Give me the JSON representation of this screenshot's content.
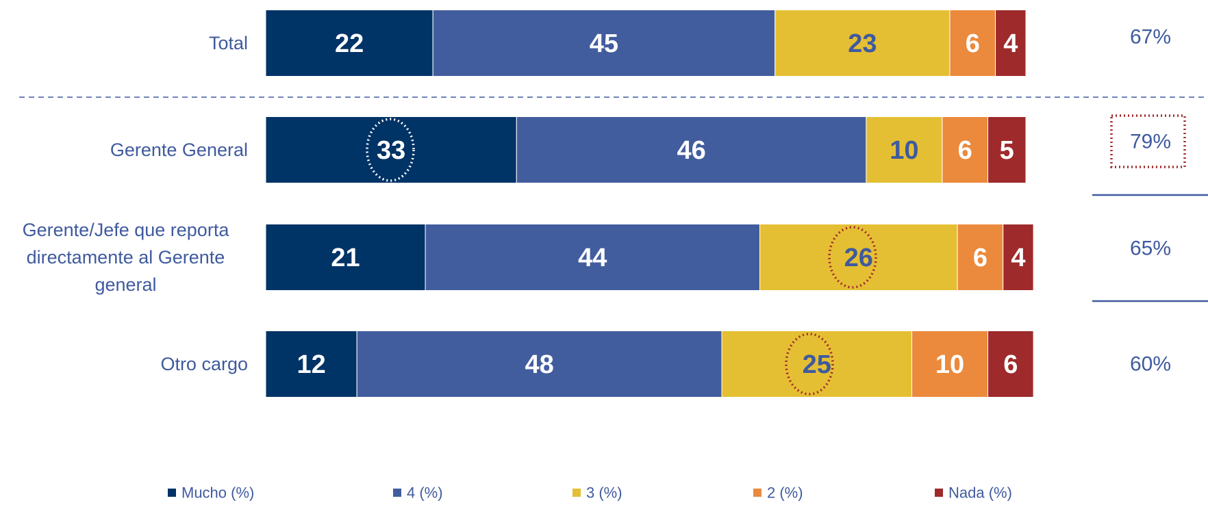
{
  "chart_data": {
    "type": "stacked-bar-horizontal",
    "categories": [
      "Total",
      "Gerente General",
      "Gerente/Jefe que reporta directamente al Gerente general",
      "Otro cargo"
    ],
    "series": [
      {
        "name": "Mucho (%)",
        "color": "#003366",
        "label_color": "#ffffff",
        "values": [
          22,
          33,
          21,
          12
        ]
      },
      {
        "name": "4 (%)",
        "color": "#425d9e",
        "label_color": "#ffffff",
        "values": [
          45,
          46,
          44,
          48
        ]
      },
      {
        "name": "3 (%)",
        "color": "#e5bf33",
        "label_color": "#3f5a9e",
        "values": [
          23,
          10,
          26,
          25
        ]
      },
      {
        "name": "2 (%)",
        "color": "#eb8a3c",
        "label_color": "#ffffff",
        "values": [
          6,
          6,
          6,
          10
        ]
      },
      {
        "name": "Nada (%)",
        "color": "#9e2a2b",
        "label_color": "#ffffff",
        "values": [
          4,
          5,
          4,
          6
        ]
      }
    ],
    "xlim": [
      0,
      100
    ],
    "top2": {
      "values": [
        67,
        79,
        65,
        60
      ],
      "value_labels": [
        "67%",
        "79%",
        "65%",
        "60%"
      ]
    }
  }
}
